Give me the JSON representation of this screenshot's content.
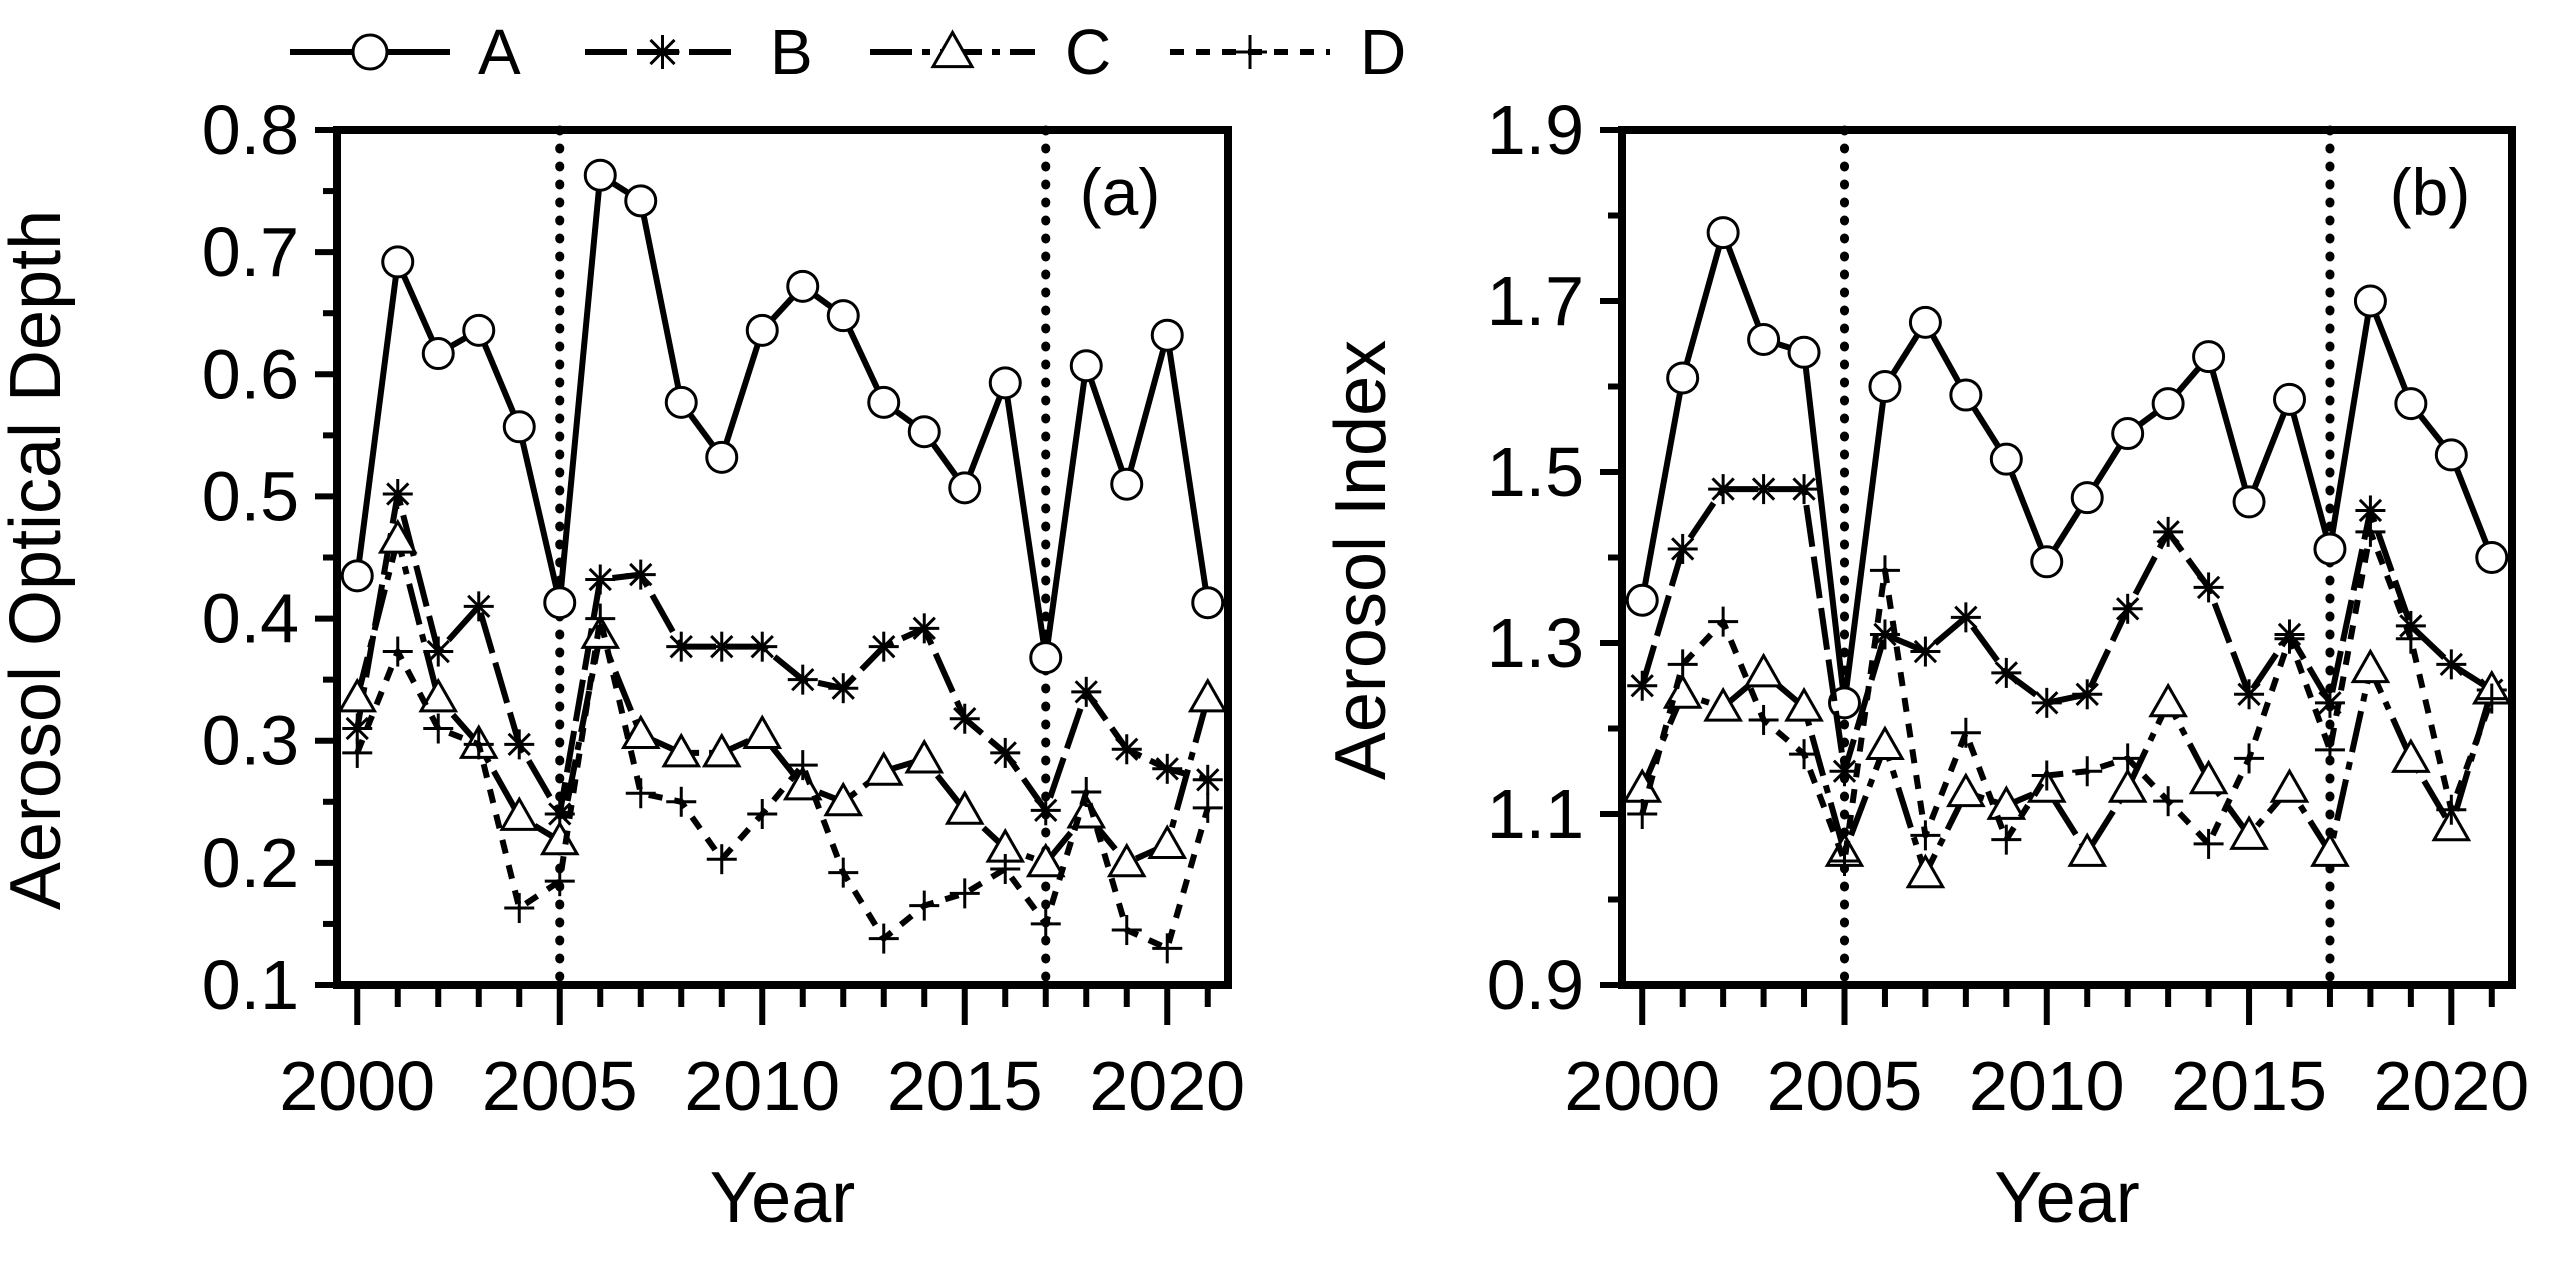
{
  "legend": [
    {
      "name": "A",
      "marker": "circle"
    },
    {
      "name": "B",
      "marker": "asterisk"
    },
    {
      "name": "C",
      "marker": "triangle"
    },
    {
      "name": "D",
      "marker": "plus"
    }
  ],
  "chart_data": [
    {
      "type": "line",
      "panel_label": "(a)",
      "xlabel": "Year",
      "ylabel": "Aerosol Optical Depth",
      "xlim": [
        1999.5,
        2021.5
      ],
      "ylim": [
        0.1,
        0.8
      ],
      "xticks": [
        2000,
        2005,
        2010,
        2015,
        2020
      ],
      "yticks": [
        0.1,
        0.2,
        0.3,
        0.4,
        0.5,
        0.6,
        0.7,
        0.8
      ],
      "ytick_labels": [
        "0.1",
        "0.2",
        "0.3",
        "0.4",
        "0.5",
        "0.6",
        "0.7",
        "0.8"
      ],
      "vertical_dotted_lines": [
        2005,
        2017
      ],
      "x": [
        2000,
        2001,
        2002,
        2003,
        2004,
        2005,
        2006,
        2007,
        2008,
        2009,
        2010,
        2011,
        2012,
        2013,
        2014,
        2015,
        2016,
        2017,
        2018,
        2019,
        2020,
        2021
      ],
      "series": [
        {
          "name": "A",
          "values": [
            0.435,
            0.692,
            0.617,
            0.636,
            0.557,
            0.413,
            0.763,
            0.742,
            0.577,
            0.532,
            0.636,
            0.672,
            0.648,
            0.577,
            0.553,
            0.507,
            0.593,
            0.368,
            0.607,
            0.51,
            0.632,
            0.413
          ]
        },
        {
          "name": "B",
          "values": [
            0.31,
            0.502,
            0.373,
            0.41,
            0.297,
            0.24,
            0.432,
            0.436,
            0.377,
            0.377,
            0.377,
            0.35,
            0.343,
            0.377,
            0.392,
            0.318,
            0.29,
            0.243,
            0.34,
            0.293,
            0.277,
            0.268
          ]
        },
        {
          "name": "C",
          "values": [
            0.335,
            0.465,
            0.335,
            0.297,
            0.238,
            0.218,
            0.387,
            0.305,
            0.29,
            0.29,
            0.305,
            0.263,
            0.25,
            0.275,
            0.285,
            0.243,
            0.212,
            0.2,
            0.24,
            0.2,
            0.215,
            0.335
          ]
        },
        {
          "name": "D",
          "values": [
            0.29,
            0.373,
            0.31,
            0.297,
            0.163,
            0.185,
            0.4,
            0.257,
            0.25,
            0.203,
            0.24,
            0.28,
            0.192,
            0.138,
            0.165,
            0.175,
            0.195,
            0.15,
            0.258,
            0.145,
            0.13,
            0.245
          ]
        }
      ]
    },
    {
      "type": "line",
      "panel_label": "(b)",
      "xlabel": "Year",
      "ylabel": "Aerosol Index",
      "xlim": [
        1999.5,
        2021.5
      ],
      "ylim": [
        0.9,
        1.9
      ],
      "xticks": [
        2000,
        2005,
        2010,
        2015,
        2020
      ],
      "yticks": [
        0.9,
        1.1,
        1.3,
        1.5,
        1.7,
        1.9
      ],
      "ytick_labels": [
        "0.9",
        "1.1",
        "1.3",
        "1.5",
        "1.7",
        "1.9"
      ],
      "vertical_dotted_lines": [
        2005,
        2017
      ],
      "x": [
        2000,
        2001,
        2002,
        2003,
        2004,
        2005,
        2006,
        2007,
        2008,
        2009,
        2010,
        2011,
        2012,
        2013,
        2014,
        2015,
        2016,
        2017,
        2018,
        2019,
        2020,
        2021
      ],
      "series": [
        {
          "name": "A",
          "values": [
            1.35,
            1.61,
            1.78,
            1.655,
            1.64,
            1.23,
            1.6,
            1.675,
            1.59,
            1.515,
            1.395,
            1.47,
            1.545,
            1.58,
            1.635,
            1.465,
            1.585,
            1.41,
            1.7,
            1.58,
            1.52,
            1.4
          ]
        },
        {
          "name": "B",
          "values": [
            1.25,
            1.41,
            1.48,
            1.48,
            1.48,
            1.15,
            1.31,
            1.29,
            1.33,
            1.265,
            1.23,
            1.24,
            1.34,
            1.43,
            1.365,
            1.24,
            1.31,
            1.23,
            1.455,
            1.32,
            1.275,
            1.245
          ]
        },
        {
          "name": "C",
          "values": [
            1.13,
            1.24,
            1.225,
            1.265,
            1.225,
            1.055,
            1.18,
            1.03,
            1.125,
            1.11,
            1.13,
            1.055,
            1.13,
            1.23,
            1.14,
            1.075,
            1.13,
            1.055,
            1.27,
            1.165,
            1.085,
            1.245
          ]
        },
        {
          "name": "D",
          "values": [
            1.1,
            1.275,
            1.325,
            1.21,
            1.17,
            1.045,
            1.385,
            1.075,
            1.195,
            1.07,
            1.145,
            1.15,
            1.165,
            1.115,
            1.065,
            1.165,
            1.305,
            1.175,
            1.43,
            1.305,
            1.105,
            1.235
          ]
        }
      ]
    }
  ]
}
